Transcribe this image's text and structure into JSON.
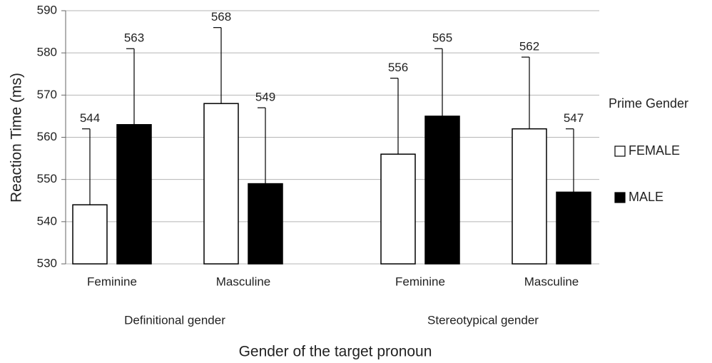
{
  "chart_data": {
    "type": "bar",
    "categories": [
      "Feminine",
      "Masculine",
      "Feminine",
      "Masculine"
    ],
    "groups": [
      "Definitional gender",
      "Stereotypical gender"
    ],
    "series": [
      {
        "name": "FEMALE",
        "color": "#ffffff",
        "values": [
          544,
          568,
          556,
          562
        ],
        "errors": [
          18,
          18,
          18,
          17
        ]
      },
      {
        "name": "MALE",
        "color": "#000000",
        "values": [
          563,
          549,
          565,
          547
        ],
        "errors": [
          18,
          18,
          16,
          15
        ]
      }
    ],
    "ylim": [
      530,
      590
    ],
    "yticks": [
      530,
      540,
      550,
      560,
      570,
      580,
      590
    ],
    "grid": true,
    "ylabel": "Reaction Time (ms)",
    "xlabel": "Gender of the target pronoun",
    "legend_title": "Prime Gender",
    "legend": "right"
  }
}
